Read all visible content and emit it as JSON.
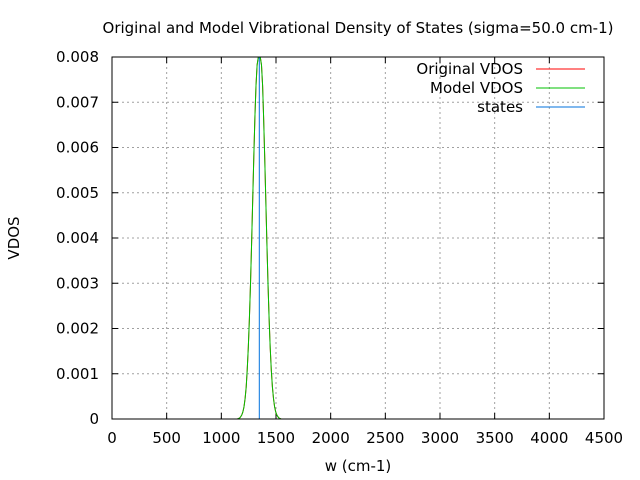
{
  "chart_data": {
    "type": "line",
    "title": "Original and Model Vibrational Density of States (sigma=50.0 cm-1)",
    "xlabel": "w (cm-1)",
    "ylabel": "VDOS",
    "xlim": [
      0,
      4500
    ],
    "ylim": [
      0,
      0.008
    ],
    "xticks": [
      "0",
      "500",
      "1000",
      "1500",
      "2000",
      "2500",
      "3000",
      "3500",
      "4000",
      "4500"
    ],
    "yticks": [
      "0",
      "0.001",
      "0.002",
      "0.003",
      "0.004",
      "0.005",
      "0.006",
      "0.007",
      "0.008"
    ],
    "grid": true,
    "legend_position": "top-right",
    "series": [
      {
        "name": "Original VDOS",
        "color": "#ff0000",
        "x": [
          1147,
          1157,
          1167,
          1177,
          1187,
          1197,
          1207,
          1217,
          1227,
          1237,
          1247,
          1257,
          1267,
          1277,
          1287,
          1297,
          1307,
          1317,
          1327,
          1337,
          1347,
          1357,
          1367,
          1377,
          1387,
          1397,
          1407,
          1417,
          1427,
          1437,
          1447,
          1457,
          1467,
          1477,
          1487,
          1497,
          1507,
          1517,
          1527,
          1537,
          1547
        ],
        "y": [
          0,
          1e-05,
          2e-05,
          5e-05,
          9e-05,
          0.00016,
          0.00027,
          0.00045,
          0.00071,
          0.00108,
          0.00158,
          0.00222,
          0.00299,
          0.00388,
          0.00484,
          0.00579,
          0.00667,
          0.00737,
          0.00782,
          0.00798,
          0.00798,
          0.00798,
          0.00782,
          0.00737,
          0.00667,
          0.00579,
          0.00484,
          0.00388,
          0.00299,
          0.00222,
          0.00158,
          0.00108,
          0.00071,
          0.00045,
          0.00027,
          0.00016,
          9e-05,
          5e-05,
          2e-05,
          1e-05,
          0
        ]
      },
      {
        "name": "Model VDOS",
        "color": "#00c000",
        "x": [
          1147,
          1157,
          1167,
          1177,
          1187,
          1197,
          1207,
          1217,
          1227,
          1237,
          1247,
          1257,
          1267,
          1277,
          1287,
          1297,
          1307,
          1317,
          1327,
          1337,
          1347,
          1357,
          1367,
          1377,
          1387,
          1397,
          1407,
          1417,
          1427,
          1437,
          1447,
          1457,
          1467,
          1477,
          1487,
          1497,
          1507,
          1517,
          1527,
          1537,
          1547
        ],
        "y": [
          0,
          1e-05,
          2e-05,
          5e-05,
          9e-05,
          0.00016,
          0.00027,
          0.00045,
          0.00071,
          0.00108,
          0.00158,
          0.00222,
          0.00299,
          0.00388,
          0.00484,
          0.00579,
          0.00667,
          0.00737,
          0.00782,
          0.00798,
          0.00798,
          0.00798,
          0.00782,
          0.00737,
          0.00667,
          0.00579,
          0.00484,
          0.00388,
          0.00299,
          0.00222,
          0.00158,
          0.00108,
          0.00071,
          0.00045,
          0.00027,
          0.00016,
          9e-05,
          5e-05,
          2e-05,
          1e-05,
          0
        ]
      },
      {
        "name": "states",
        "color": "#0072dd",
        "x": [
          1347,
          1347
        ],
        "y": [
          0,
          0.008
        ]
      }
    ]
  }
}
